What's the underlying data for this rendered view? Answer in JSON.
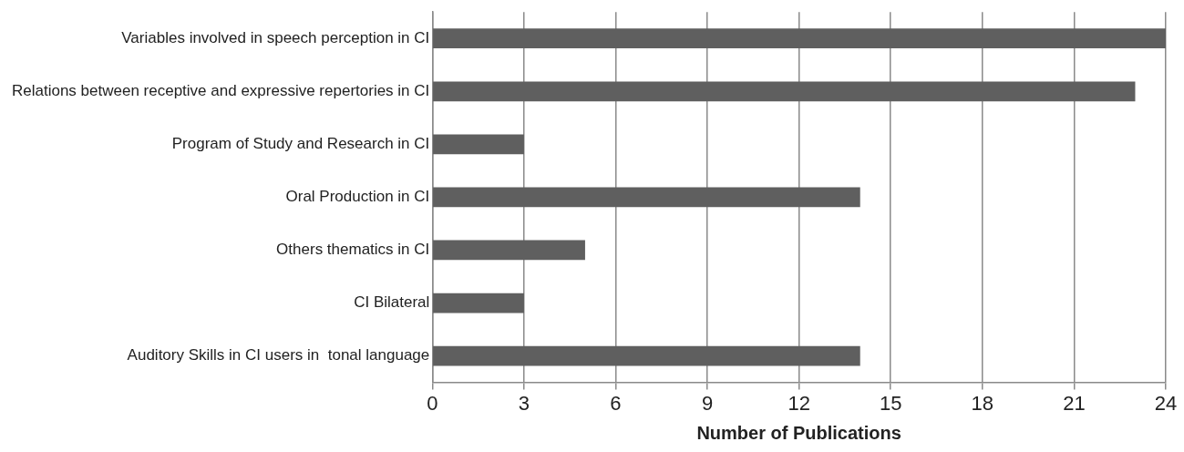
{
  "chart_data": {
    "type": "bar",
    "orientation": "horizontal",
    "xlabel": "Number of Publications",
    "categories": [
      "Variables involved in speech perception in CI",
      "Relations between receptive and expressive repertories in CI",
      "Program of Study and Research in CI",
      "Oral Production in CI",
      "Others thematics in CI",
      "CI Bilateral",
      "Auditory Skills in CI users in  tonal language"
    ],
    "values": [
      24,
      23,
      3,
      14,
      5,
      3,
      14
    ],
    "color": "#5f5f5f",
    "xlim": [
      0,
      24
    ],
    "xticks": [
      0,
      3,
      6,
      9,
      12,
      15,
      18,
      21,
      24
    ],
    "grid": "x",
    "legend": false
  }
}
